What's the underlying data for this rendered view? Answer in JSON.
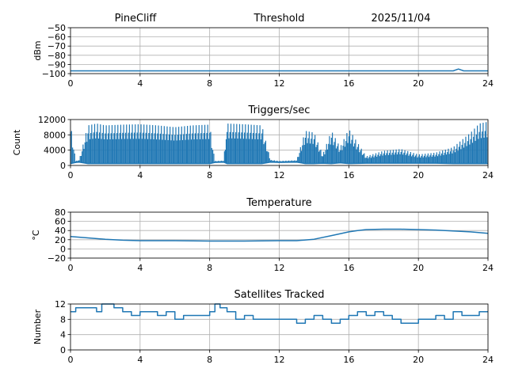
{
  "header": {
    "station": "PineCliff",
    "date": "2025/11/04"
  },
  "chart_data": [
    {
      "type": "line",
      "id": "threshold",
      "title": "Threshold",
      "ylabel": "dBm",
      "xlim": [
        0,
        24
      ],
      "ylim": [
        -100,
        -50
      ],
      "xticks": [
        0,
        4,
        8,
        12,
        16,
        20,
        24
      ],
      "yticks": [
        -100,
        -90,
        -80,
        -70,
        -60,
        -50
      ],
      "ytick_labels": [
        "−100",
        "−90",
        "−80",
        "−70",
        "−60",
        "−50"
      ],
      "grid": true,
      "series": [
        {
          "name": "threshold",
          "color": "#1f77b4",
          "x": [
            0,
            2,
            4,
            6,
            8,
            10,
            12,
            14,
            16,
            18,
            20,
            22,
            22.3,
            22.6,
            23,
            24
          ],
          "y": [
            -97,
            -97,
            -97,
            -97,
            -97,
            -97,
            -97,
            -97,
            -97,
            -97,
            -97,
            -97,
            -95,
            -97,
            -97,
            -97
          ]
        }
      ]
    },
    {
      "type": "line",
      "id": "triggers",
      "title": "Triggers/sec",
      "ylabel": "Count",
      "xlim": [
        0,
        24
      ],
      "ylim": [
        0,
        12000
      ],
      "xticks": [
        0,
        4,
        8,
        12,
        16,
        20,
        24
      ],
      "yticks": [
        0,
        4000,
        8000,
        12000
      ],
      "ytick_labels": [
        "0",
        "4000",
        "8000",
        "12000"
      ],
      "grid": true,
      "series": [
        {
          "name": "triggers",
          "color": "#1f77b4",
          "x": [
            0,
            0.3,
            0.5,
            1,
            1.5,
            2,
            3,
            4,
            5,
            6,
            7,
            8,
            8.3,
            8.8,
            9,
            10,
            11,
            11.5,
            12,
            13,
            13.5,
            14,
            14.5,
            15,
            15.5,
            16,
            17,
            18,
            19,
            20,
            21,
            22,
            23,
            23.5,
            24
          ],
          "high": [
            11500,
            1200,
            1500,
            11000,
            11500,
            11000,
            11200,
            11300,
            11000,
            10500,
            11000,
            11200,
            1200,
            1300,
            11500,
            11300,
            11000,
            1500,
            1200,
            1400,
            9500,
            9000,
            3000,
            9500,
            5000,
            10000,
            2500,
            4000,
            4500,
            3000,
            3500,
            5000,
            9000,
            11500,
            12000
          ],
          "low": [
            500,
            800,
            900,
            500,
            500,
            500,
            500,
            500,
            500,
            500,
            500,
            500,
            800,
            900,
            500,
            500,
            500,
            900,
            800,
            900,
            500,
            500,
            600,
            500,
            700,
            500,
            600,
            600,
            600,
            600,
            600,
            500,
            500,
            500,
            500
          ]
        }
      ]
    },
    {
      "type": "line",
      "id": "temperature",
      "title": "Temperature",
      "ylabel": "°C",
      "xlim": [
        0,
        24
      ],
      "ylim": [
        -20,
        80
      ],
      "xticks": [
        0,
        4,
        8,
        12,
        16,
        20,
        24
      ],
      "yticks": [
        -20,
        0,
        20,
        40,
        60,
        80
      ],
      "ytick_labels": [
        "−20",
        "0",
        "20",
        "40",
        "60",
        "80"
      ],
      "grid": true,
      "series": [
        {
          "name": "temperature",
          "color": "#1f77b4",
          "x": [
            0,
            1,
            2,
            3,
            4,
            6,
            8,
            10,
            12,
            13,
            14,
            15,
            16,
            16.5,
            17,
            18,
            19,
            20,
            21,
            22,
            23,
            24
          ],
          "y": [
            27,
            24,
            21,
            19,
            18,
            18,
            17,
            17,
            18,
            18,
            21,
            29,
            37,
            40,
            42,
            43,
            43,
            42,
            41,
            39,
            37,
            34
          ]
        }
      ]
    },
    {
      "type": "line",
      "id": "satellites",
      "title": "Satellites Tracked",
      "ylabel": "Number",
      "xlim": [
        0,
        24
      ],
      "ylim": [
        0,
        12
      ],
      "xticks": [
        0,
        4,
        8,
        12,
        16,
        20,
        24
      ],
      "yticks": [
        0,
        4,
        8,
        12
      ],
      "ytick_labels": [
        "0",
        "4",
        "8",
        "12"
      ],
      "grid": true,
      "series": [
        {
          "name": "satellites",
          "color": "#1f77b4",
          "x": [
            0,
            0.3,
            1,
            1.5,
            1.8,
            2.5,
            3,
            3.5,
            4,
            5,
            5.5,
            6,
            6.5,
            7,
            7.5,
            8,
            8.3,
            8.6,
            9,
            9.5,
            10,
            10.5,
            11,
            12,
            13,
            13.5,
            14,
            14.5,
            15,
            15.5,
            16,
            16.5,
            17,
            17.5,
            18,
            18.5,
            19,
            19.5,
            20,
            20.5,
            21,
            21.5,
            22,
            22.5,
            23,
            23.5,
            24
          ],
          "y": [
            10,
            11,
            11,
            10,
            12,
            11,
            10,
            9,
            10,
            9,
            10,
            8,
            9,
            9,
            9,
            10,
            12,
            11,
            10,
            8,
            9,
            8,
            8,
            8,
            7,
            8,
            9,
            8,
            7,
            8,
            9,
            10,
            9,
            10,
            9,
            8,
            7,
            7,
            8,
            8,
            9,
            8,
            10,
            9,
            9,
            10,
            10
          ]
        }
      ]
    }
  ]
}
